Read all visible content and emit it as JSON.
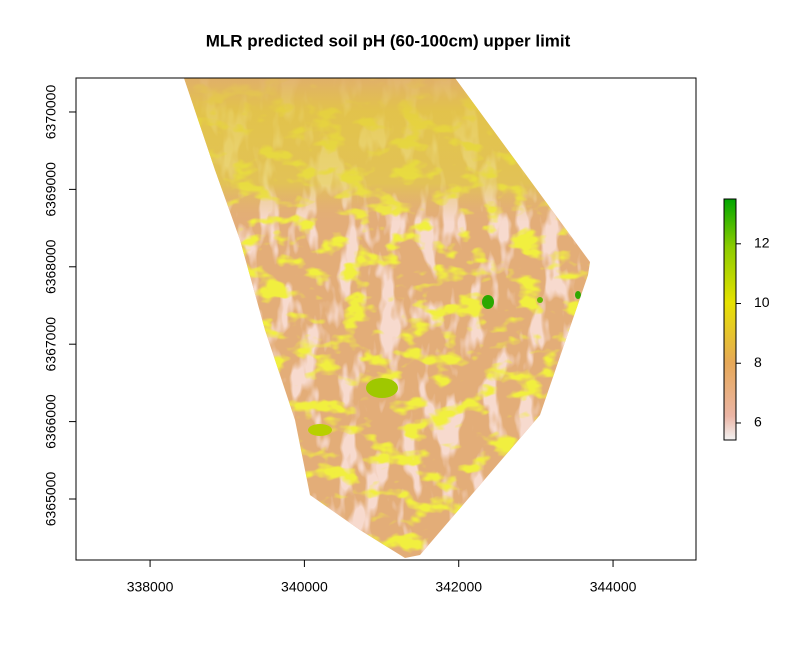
{
  "chart_data": {
    "type": "raster",
    "title": "MLR predicted soil pH (60-100cm) upper limit",
    "xlim": [
      337040,
      345075
    ],
    "xticks": [
      338000,
      340000,
      342000,
      344000
    ],
    "ylim": [
      6364212,
      6370439
    ],
    "yticks": [
      6365000,
      6366000,
      6367000,
      6368000,
      6369000,
      6370000
    ],
    "zlim": [
      5.43,
      13.5
    ],
    "zticks": [
      6,
      8,
      10,
      12
    ]
  }
}
